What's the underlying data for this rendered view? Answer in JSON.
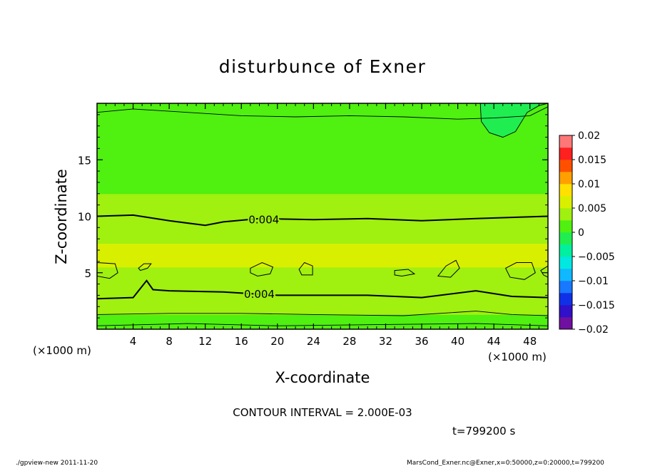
{
  "chart_data": {
    "type": "heatmap",
    "title": "disturbunce of Exner",
    "xlabel": "X-coordinate",
    "ylabel": "Z-coordinate",
    "x_unit": "(×1000 m)",
    "y_unit": "(×1000 m)",
    "xlim": [
      0,
      50
    ],
    "ylim": [
      0,
      20
    ],
    "x_ticks": [
      "4",
      "8",
      "12",
      "16",
      "20",
      "24",
      "28",
      "32",
      "36",
      "40",
      "44",
      "48"
    ],
    "y_ticks": [
      "5",
      "10",
      "15"
    ],
    "colorbar": {
      "ticks": [
        "0.02",
        "0.015",
        "0.01",
        "0.005",
        "0",
        "−0.005",
        "−0.01",
        "−0.015",
        "−0.02"
      ],
      "range": [
        -0.02,
        0.02
      ],
      "step": 0.0025,
      "colors": [
        "#7010a0",
        "#3010c8",
        "#1030e8",
        "#1878ff",
        "#10b8ff",
        "#00e8e0",
        "#00f0a0",
        "#20ee50",
        "#50f010",
        "#a0f010",
        "#d8f000",
        "#ffe000",
        "#ffa000",
        "#ff5000",
        "#ff2020",
        "#ff7878"
      ]
    },
    "contour_interval_text": "CONTOUR INTERVAL = 2.000E-03",
    "contour_labels": [
      "0.004",
      "0.004"
    ],
    "bands": [
      {
        "z_from": 0,
        "z_to": 0.5,
        "value": 0.0005
      },
      {
        "z_from": 0.5,
        "z_to": 1.3,
        "value": 0.0015
      },
      {
        "z_from": 1.3,
        "z_to": 2.2,
        "value": 0.0025
      },
      {
        "z_from": 2.2,
        "z_to": 2.9,
        "value": 0.0035
      },
      {
        "z_from": 2.9,
        "z_to": 5.5,
        "value": 0.0048
      },
      {
        "z_from": 5.5,
        "z_to": 7.6,
        "value": 0.0052
      },
      {
        "z_from": 7.6,
        "z_to": 8.5,
        "value": 0.0046
      },
      {
        "z_from": 8.5,
        "z_to": 10.0,
        "value": 0.0041
      },
      {
        "z_from": 10.0,
        "z_to": 12.0,
        "value": 0.0034
      },
      {
        "z_from": 12.0,
        "z_to": 14.0,
        "value": 0.0022
      },
      {
        "z_from": 14.0,
        "z_to": 18.6,
        "value": 0.0012
      },
      {
        "z_from": 18.6,
        "z_to": 20.0,
        "value": 0.0005
      }
    ],
    "contours": [
      {
        "value": 0.004,
        "label": true,
        "points": [
          [
            0,
            10.0
          ],
          [
            4,
            10.1
          ],
          [
            8,
            9.6
          ],
          [
            12,
            9.2
          ],
          [
            14,
            9.5
          ],
          [
            18,
            9.8
          ],
          [
            24,
            9.7
          ],
          [
            30,
            9.8
          ],
          [
            36,
            9.6
          ],
          [
            42,
            9.8
          ],
          [
            50,
            10.0
          ]
        ]
      },
      {
        "value": 0.004,
        "label": true,
        "points": [
          [
            0,
            2.7
          ],
          [
            4,
            2.8
          ],
          [
            5.5,
            4.3
          ],
          [
            6.2,
            3.5
          ],
          [
            8,
            3.4
          ],
          [
            14,
            3.3
          ],
          [
            20,
            3.0
          ],
          [
            30,
            3.0
          ],
          [
            36,
            2.8
          ],
          [
            42,
            3.4
          ],
          [
            46,
            2.9
          ],
          [
            50,
            2.8
          ]
        ]
      },
      {
        "value": 0.002,
        "label": false,
        "points": [
          [
            0,
            1.3
          ],
          [
            8,
            1.4
          ],
          [
            16,
            1.4
          ],
          [
            24,
            1.3
          ],
          [
            34,
            1.2
          ],
          [
            42,
            1.6
          ],
          [
            46,
            1.3
          ],
          [
            50,
            1.2
          ]
        ]
      },
      {
        "value": 0.002,
        "label": false,
        "points": [
          [
            0,
            19.2
          ],
          [
            4,
            19.5
          ],
          [
            10,
            19.2
          ],
          [
            16,
            18.9
          ],
          [
            22,
            18.8
          ],
          [
            28,
            18.9
          ],
          [
            34,
            18.8
          ],
          [
            40,
            18.6
          ],
          [
            44,
            18.7
          ],
          [
            48,
            18.9
          ],
          [
            50,
            19.7
          ]
        ]
      },
      {
        "value": 0.0,
        "label": false,
        "points": [
          [
            0,
            0.3
          ],
          [
            10,
            0.5
          ],
          [
            20,
            0.3
          ],
          [
            30,
            0.4
          ],
          [
            42,
            0.5
          ],
          [
            50,
            0.3
          ]
        ]
      }
    ],
    "closed_contours": [
      {
        "value": 0.006,
        "points": [
          [
            0,
            5.9
          ],
          [
            2,
            5.8
          ],
          [
            2.3,
            5.0
          ],
          [
            1.4,
            4.5
          ],
          [
            0,
            4.7
          ]
        ]
      },
      {
        "value": 0.006,
        "points": [
          [
            4.6,
            5.4
          ],
          [
            5.2,
            5.8
          ],
          [
            6,
            5.8
          ],
          [
            5.6,
            5.4
          ],
          [
            4.8,
            5.2
          ]
        ]
      },
      {
        "value": 0.006,
        "points": [
          [
            17,
            5.4
          ],
          [
            18.3,
            5.9
          ],
          [
            19.5,
            5.5
          ],
          [
            19.2,
            4.9
          ],
          [
            17.8,
            4.7
          ],
          [
            17,
            5.0
          ]
        ]
      },
      {
        "value": 0.006,
        "points": [
          [
            22.4,
            5.3
          ],
          [
            23,
            5.9
          ],
          [
            23.9,
            5.6
          ],
          [
            23.9,
            4.8
          ],
          [
            22.7,
            4.8
          ]
        ]
      },
      {
        "value": 0.006,
        "points": [
          [
            33,
            5.2
          ],
          [
            34.5,
            5.3
          ],
          [
            35.2,
            4.9
          ],
          [
            33.8,
            4.7
          ],
          [
            33,
            4.8
          ]
        ]
      },
      {
        "value": 0.006,
        "points": [
          [
            37.8,
            4.7
          ],
          [
            38.7,
            5.6
          ],
          [
            39.8,
            6.1
          ],
          [
            40.2,
            5.4
          ],
          [
            39.2,
            4.6
          ]
        ]
      },
      {
        "value": 0.006,
        "points": [
          [
            45.3,
            5.4
          ],
          [
            46.5,
            5.9
          ],
          [
            48.2,
            5.9
          ],
          [
            48.6,
            5.0
          ],
          [
            47.4,
            4.4
          ],
          [
            45.8,
            4.6
          ]
        ]
      },
      {
        "value": 0.006,
        "points": [
          [
            49.2,
            5.2
          ],
          [
            50,
            5.6
          ],
          [
            50,
            4.6
          ],
          [
            49.5,
            4.8
          ]
        ]
      }
    ],
    "corner_blob": {
      "value": -0.0003,
      "points": [
        [
          42.5,
          20
        ],
        [
          42.6,
          18.4
        ],
        [
          43.5,
          17.4
        ],
        [
          45,
          17.0
        ],
        [
          46.4,
          17.5
        ],
        [
          47.7,
          19.2
        ],
        [
          49,
          19.8
        ],
        [
          50,
          20
        ]
      ]
    }
  },
  "annotations": {
    "time": "t=799200 s",
    "footer_left": "./gpview-new   2011-11-20",
    "footer_right": "MarsCond_Exner.nc@Exner,x=0:50000,z=0:20000,t=799200"
  }
}
